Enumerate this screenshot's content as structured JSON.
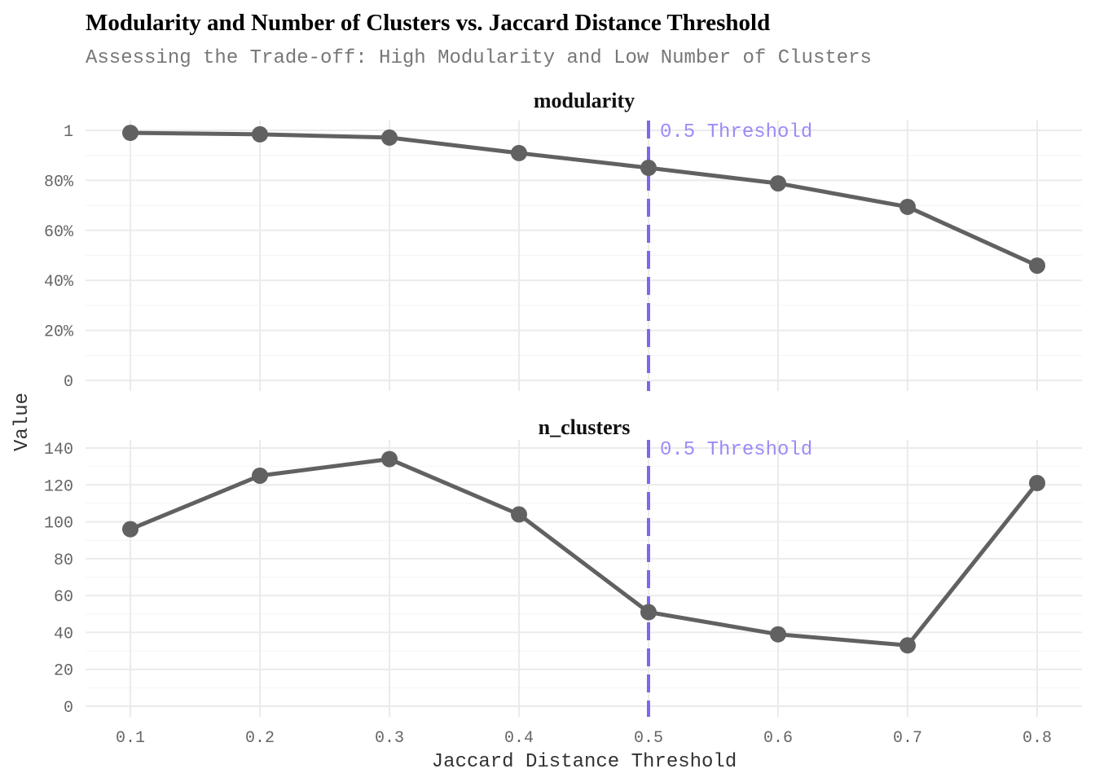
{
  "chart_data": {
    "type": "line",
    "title": "Modularity and Number of Clusters vs. Jaccard Distance Threshold",
    "subtitle": "Assessing the Trade-off: High Modularity and Low Number of Clusters",
    "xlabel": "Jaccard Distance Threshold",
    "ylabel": "Value",
    "x": [
      0.1,
      0.2,
      0.3,
      0.4,
      0.5,
      0.6,
      0.7,
      0.8
    ],
    "x_tick_labels": [
      "0.1",
      "0.2",
      "0.3",
      "0.4",
      "0.5",
      "0.6",
      "0.7",
      "0.8"
    ],
    "grid": true,
    "line_color": "#616161",
    "threshold": {
      "x": 0.5,
      "label": "0.5 Threshold",
      "color": "#7b68ee"
    },
    "panels": [
      {
        "name": "modularity",
        "values": [
          0.99,
          0.984,
          0.971,
          0.909,
          0.85,
          0.788,
          0.694,
          0.459
        ],
        "ylim": [
          0,
          1
        ],
        "y_ticks": [
          0,
          0.2,
          0.4,
          0.6,
          0.8,
          1
        ],
        "y_tick_labels": [
          "0",
          "20%",
          "40%",
          "60%",
          "80%",
          "1"
        ]
      },
      {
        "name": "n_clusters",
        "values": [
          96,
          125,
          134,
          104,
          51,
          39,
          33,
          121
        ],
        "ylim": [
          0,
          140
        ],
        "y_ticks": [
          0,
          20,
          40,
          60,
          80,
          100,
          120,
          140
        ],
        "y_tick_labels": [
          "0",
          "20",
          "40",
          "60",
          "80",
          "100",
          "120",
          "140"
        ]
      }
    ]
  }
}
